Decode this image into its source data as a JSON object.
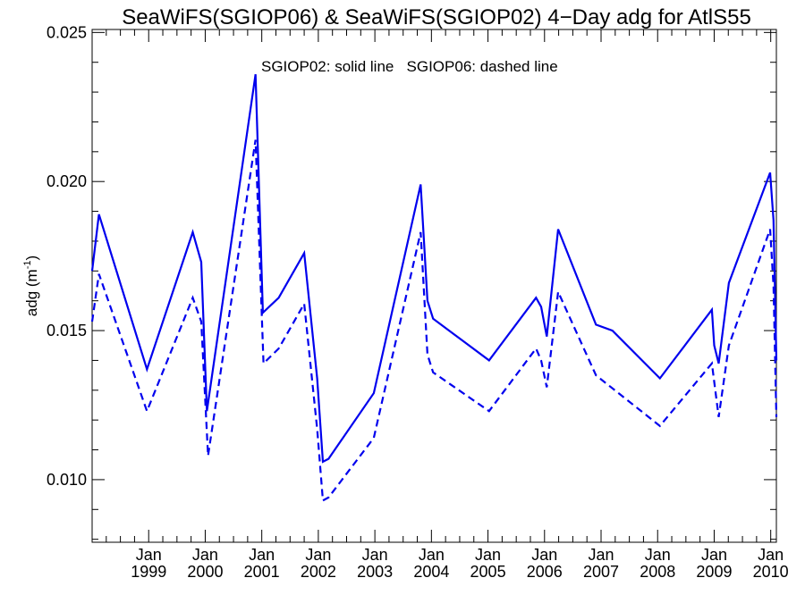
{
  "chart_data": {
    "type": "line",
    "title": "SeaWiFS(SGIOP06) & SeaWiFS(SGIOP02) 4−Day adg for AtlS55",
    "ylabel": "adg (m",
    "ylabel_sup": "-1",
    "ylabel_close": ")",
    "annotation": "SGIOP02: solid line   SGIOP06: dashed line",
    "ylim": [
      0.0079,
      0.0251
    ],
    "xlim": [
      1998.0,
      2010.1
    ],
    "y_ticks": [
      0.01,
      0.015,
      0.02,
      0.025
    ],
    "y_tick_labels": [
      "0.010",
      "0.015",
      "0.020",
      "0.025"
    ],
    "x_ticks": [
      1999.0,
      2000.0,
      2001.0,
      2002.0,
      2003.0,
      2004.0,
      2005.0,
      2006.0,
      2007.0,
      2008.0,
      2009.0,
      2010.0
    ],
    "x_tick_labels": [
      {
        "month": "Jan",
        "year": "1999"
      },
      {
        "month": "Jan",
        "year": "2000"
      },
      {
        "month": "Jan",
        "year": "2001"
      },
      {
        "month": "Jan",
        "year": "2002"
      },
      {
        "month": "Jan",
        "year": "2003"
      },
      {
        "month": "Jan",
        "year": "2004"
      },
      {
        "month": "Jan",
        "year": "2005"
      },
      {
        "month": "Jan",
        "year": "2006"
      },
      {
        "month": "Jan",
        "year": "2007"
      },
      {
        "month": "Jan",
        "year": "2008"
      },
      {
        "month": "Jan",
        "year": "2009"
      },
      {
        "month": "Jan",
        "year": "2010"
      }
    ],
    "grid": false,
    "series": [
      {
        "name": "SGIOP02",
        "style": "solid",
        "color": "#0000ee",
        "x": [
          1998.0,
          1998.12,
          1998.97,
          1999.78,
          1999.93,
          2000.03,
          2000.89,
          2001.02,
          2001.3,
          2001.75,
          2001.98,
          2002.08,
          2002.18,
          2002.98,
          2003.81,
          2003.93,
          2004.03,
          2005.02,
          2005.85,
          2005.94,
          2006.04,
          2006.24,
          2006.91,
          2007.2,
          2008.04,
          2008.96,
          2009.0,
          2009.08,
          2009.26,
          2009.99,
          2010.05,
          2010.1
        ],
        "y": [
          0.017,
          0.0189,
          0.0137,
          0.0183,
          0.0173,
          0.0123,
          0.0236,
          0.0156,
          0.0161,
          0.0176,
          0.0134,
          0.0106,
          0.0107,
          0.0129,
          0.0199,
          0.016,
          0.0154,
          0.014,
          0.0161,
          0.0158,
          0.0148,
          0.0184,
          0.0152,
          0.015,
          0.0134,
          0.0157,
          0.0145,
          0.0139,
          0.0166,
          0.0203,
          0.0187,
          0.014
        ]
      },
      {
        "name": "SGIOP06",
        "style": "dashed",
        "color": "#0000ee",
        "x": [
          1998.0,
          1998.12,
          1998.97,
          1999.78,
          1999.93,
          2000.05,
          2000.89,
          2001.03,
          2001.3,
          2001.75,
          2001.98,
          2002.08,
          2002.18,
          2002.98,
          2003.81,
          2003.93,
          2004.03,
          2005.02,
          2005.85,
          2005.94,
          2006.04,
          2006.24,
          2006.91,
          2008.04,
          2008.96,
          2009.08,
          2009.26,
          2009.99,
          2010.05,
          2010.1
        ],
        "y": [
          0.0153,
          0.0169,
          0.0123,
          0.0161,
          0.0153,
          0.0108,
          0.0214,
          0.0139,
          0.0144,
          0.0159,
          0.0117,
          0.0093,
          0.0094,
          0.0114,
          0.0183,
          0.0142,
          0.0136,
          0.0123,
          0.0144,
          0.014,
          0.0131,
          0.0163,
          0.0135,
          0.0118,
          0.0139,
          0.0121,
          0.0145,
          0.0184,
          0.0165,
          0.0121
        ]
      }
    ]
  }
}
